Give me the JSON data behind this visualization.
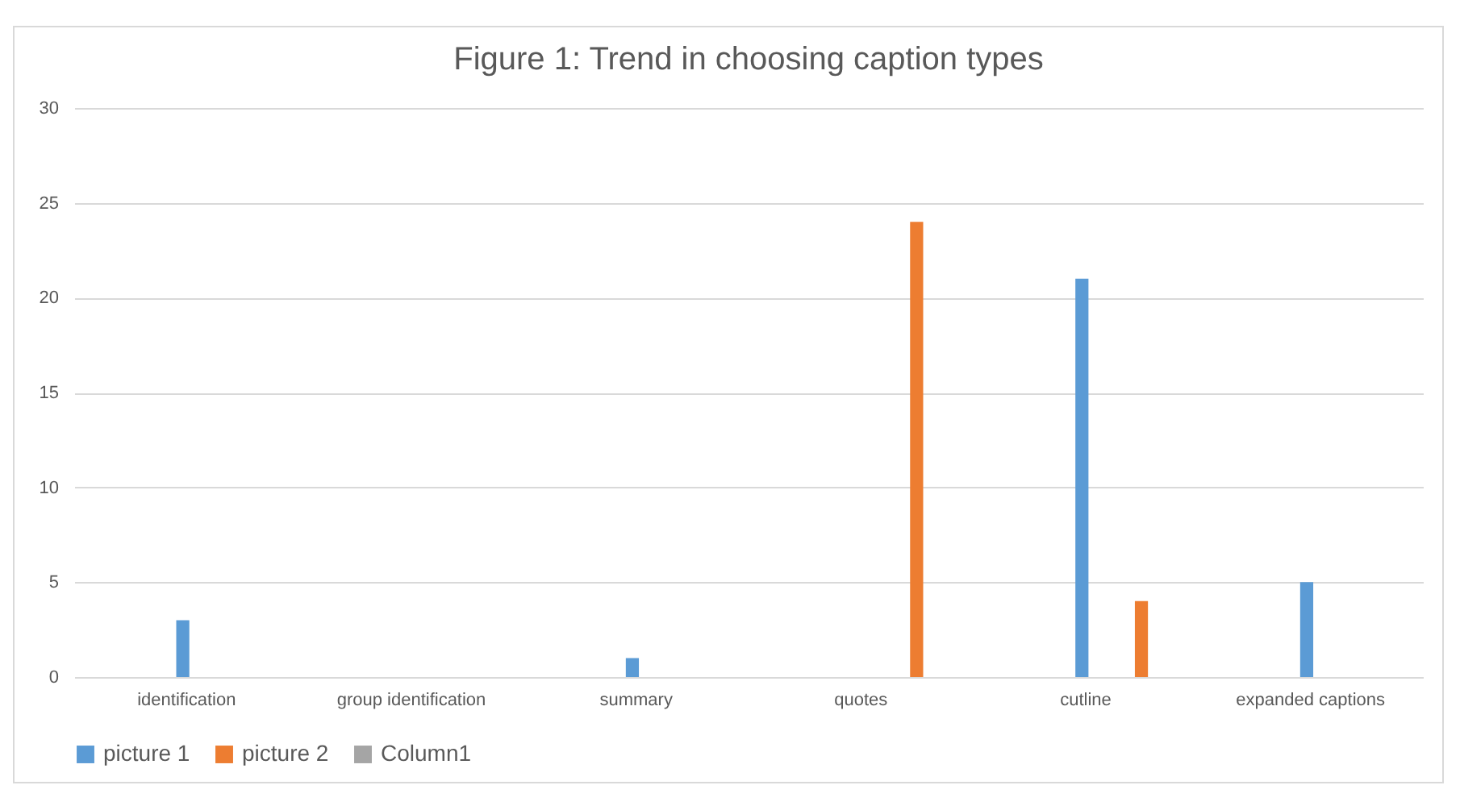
{
  "chart_data": {
    "type": "bar",
    "title": "Figure 1: Trend in choosing caption types",
    "categories": [
      "identification",
      "group identification",
      "summary",
      "quotes",
      "cutline",
      "expanded captions"
    ],
    "series": [
      {
        "name": "picture 1",
        "color": "#5b9bd5",
        "values": [
          3,
          0,
          1,
          0,
          21,
          5
        ]
      },
      {
        "name": "picture 2",
        "color": "#ed7d31",
        "values": [
          0,
          0,
          0,
          24,
          4,
          0
        ]
      },
      {
        "name": "Column1",
        "color": "#a5a5a5",
        "values": [
          null,
          null,
          null,
          null,
          null,
          null
        ]
      }
    ],
    "ylim": [
      0,
      30
    ],
    "yticks": [
      0,
      5,
      10,
      15,
      20,
      25,
      30
    ],
    "grid": "y",
    "legend": "bottom"
  }
}
